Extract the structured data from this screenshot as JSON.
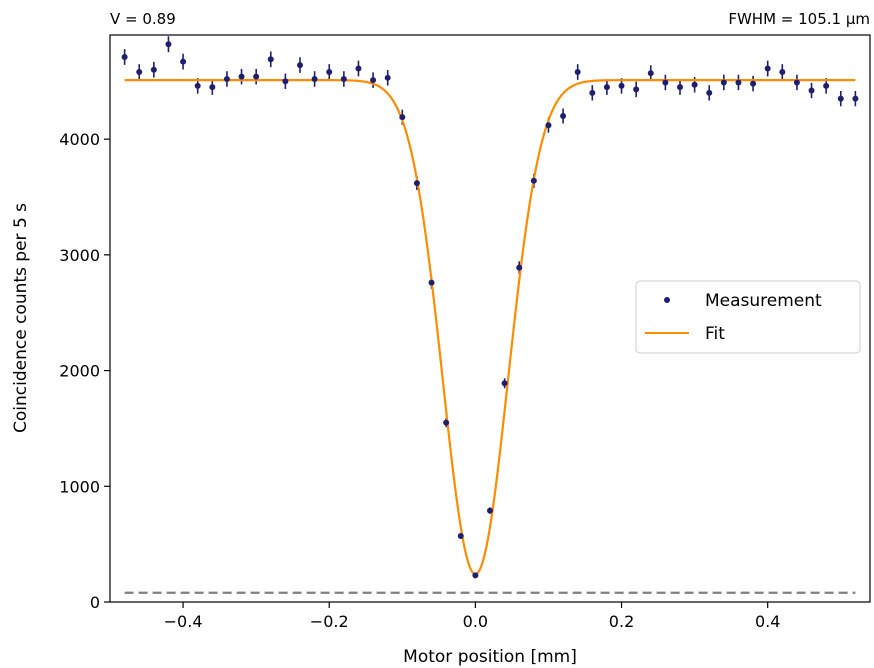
{
  "chart_data": {
    "type": "scatter",
    "title": "",
    "annotations": {
      "left": "V = 0.89",
      "right": "FWHM = 105.1 μm"
    },
    "xlabel": "Motor position [mm]",
    "ylabel": "Coincidence counts per 5 s",
    "xlim": [
      -0.5,
      0.54
    ],
    "ylim": [
      0,
      4900
    ],
    "xticks": [
      -0.4,
      -0.2,
      0.0,
      0.2,
      0.4
    ],
    "xtick_labels": [
      "−0.4",
      "−0.2",
      "0.0",
      "0.2",
      "0.4"
    ],
    "yticks": [
      0,
      1000,
      2000,
      3000,
      4000
    ],
    "ytick_labels": [
      "0",
      "1000",
      "2000",
      "3000",
      "4000"
    ],
    "grid": false,
    "legend_position": "center-right",
    "series": [
      {
        "name": "Measurement",
        "kind": "errorbar-points",
        "color": "#1f1f6e",
        "x": [
          -0.48,
          -0.46,
          -0.44,
          -0.42,
          -0.4,
          -0.38,
          -0.36,
          -0.34,
          -0.32,
          -0.3,
          -0.28,
          -0.26,
          -0.24,
          -0.22,
          -0.2,
          -0.18,
          -0.16,
          -0.14,
          -0.12,
          -0.1,
          -0.08,
          -0.06,
          -0.04,
          -0.02,
          0.0,
          0.02,
          0.04,
          0.06,
          0.08,
          0.1,
          0.12,
          0.14,
          0.16,
          0.18,
          0.2,
          0.22,
          0.24,
          0.26,
          0.28,
          0.3,
          0.32,
          0.34,
          0.36,
          0.38,
          0.4,
          0.42,
          0.44,
          0.46,
          0.48,
          0.5,
          0.52
        ],
        "y": [
          4710,
          4580,
          4600,
          4820,
          4670,
          4460,
          4450,
          4520,
          4540,
          4540,
          4690,
          4500,
          4640,
          4520,
          4580,
          4520,
          4610,
          4510,
          4530,
          4190,
          3620,
          2760,
          1550,
          570,
          230,
          790,
          1890,
          2890,
          3640,
          4120,
          4200,
          4580,
          4400,
          4450,
          4460,
          4430,
          4570,
          4490,
          4450,
          4470,
          4400,
          4490,
          4490,
          4480,
          4610,
          4580,
          4490,
          4420,
          4460,
          4350,
          4350
        ],
        "yerr": [
          68,
          68,
          68,
          69,
          68,
          67,
          67,
          67,
          67,
          67,
          68,
          67,
          68,
          67,
          68,
          67,
          68,
          67,
          67,
          65,
          60,
          53,
          39,
          24,
          15,
          28,
          43,
          54,
          60,
          64,
          65,
          68,
          66,
          67,
          67,
          67,
          68,
          67,
          67,
          67,
          66,
          67,
          67,
          67,
          68,
          68,
          67,
          66,
          67,
          66,
          66
        ]
      },
      {
        "name": "Fit",
        "kind": "gaussian-dip",
        "color": "#ff8c00",
        "x_range": [
          -0.48,
          0.52
        ],
        "baseline": 4510,
        "depth": 4270,
        "center": 0.0,
        "fwhm": 0.1051
      },
      {
        "kind": "reference-line",
        "style": "dashed",
        "color": "#808080",
        "y": 80,
        "x_range": [
          -0.48,
          0.52
        ]
      }
    ]
  }
}
